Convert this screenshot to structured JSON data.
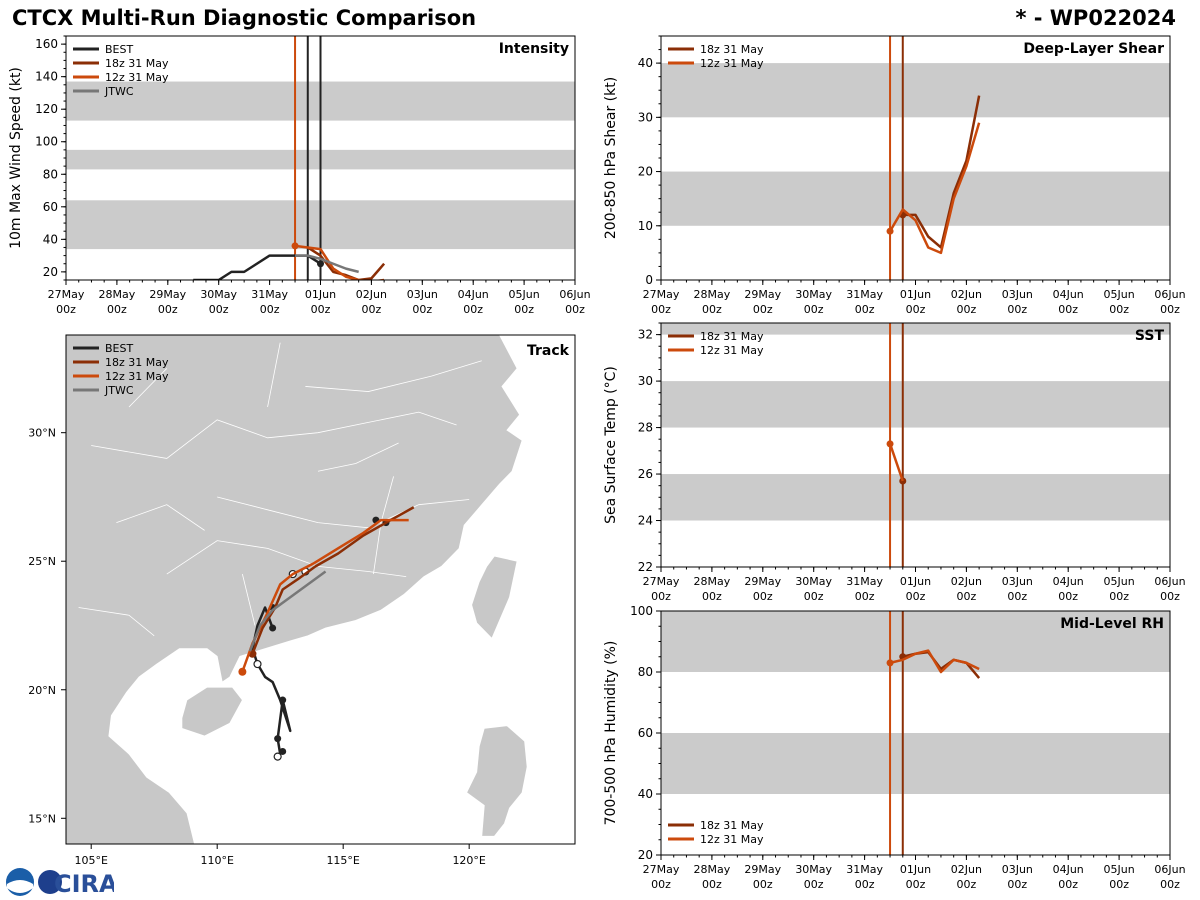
{
  "header": {
    "title": "CTCX Multi-Run Diagnostic Comparison",
    "storm_id": "* - WP022024"
  },
  "colors": {
    "best": "#222222",
    "run18": "#8b2e06",
    "run12": "#cc4a0c",
    "jtwc": "#777777",
    "band": "#cbcbcb",
    "land": "#c8c8c8",
    "border": "#ffffff"
  },
  "time_axis": {
    "ticks": [
      "27May\n00z",
      "28May\n00z",
      "29May\n00z",
      "30May\n00z",
      "31May\n00z",
      "01Jun\n00z",
      "02Jun\n00z",
      "03Jun\n00z",
      "04Jun\n00z",
      "05Jun\n00z",
      "06Jun\n00z"
    ]
  },
  "chart_data": [
    {
      "id": "intensity",
      "type": "line",
      "title": "Intensity",
      "ylabel": "10m Max Wind Speed (kt)",
      "ylim": [
        15,
        165
      ],
      "xlim": [
        0,
        10
      ],
      "yticks": [
        20,
        40,
        60,
        80,
        100,
        120,
        140,
        160
      ],
      "bands": [
        [
          34,
          64
        ],
        [
          83,
          95
        ],
        [
          113,
          137
        ]
      ],
      "vlines": [
        {
          "x": 4.5,
          "color": "run12"
        },
        {
          "x": 4.75,
          "color": "best"
        },
        {
          "x": 5.0,
          "color": "best"
        }
      ],
      "legend": [
        "BEST",
        "18z 31 May",
        "12z 31 May",
        "JTWC"
      ],
      "series": [
        {
          "name": "BEST",
          "color": "best",
          "x": [
            2.5,
            3.0,
            3.25,
            3.5,
            4.0,
            4.5,
            4.75,
            5.0
          ],
          "y": [
            15,
            15,
            20,
            20,
            30,
            30,
            30,
            25
          ],
          "markers": [
            5.0
          ]
        },
        {
          "name": "18z 31 May",
          "color": "run18",
          "x": [
            4.75,
            5.0,
            5.25,
            5.5,
            5.75,
            6.0,
            6.25
          ],
          "y": [
            35,
            30,
            20,
            18,
            15,
            16,
            25
          ]
        },
        {
          "name": "12z 31 May",
          "color": "run12",
          "x": [
            4.5,
            4.75,
            5.0,
            5.25,
            5.5,
            5.75,
            6.0,
            6.25
          ],
          "y": [
            36,
            35,
            34,
            22,
            17,
            15,
            14,
            15
          ],
          "markers": [
            4.5
          ]
        },
        {
          "name": "JTWC",
          "color": "jtwc",
          "x": [
            4.5,
            4.75,
            5.0,
            5.25,
            5.5,
            5.75
          ],
          "y": [
            30,
            30,
            28,
            25,
            22,
            20
          ]
        }
      ]
    },
    {
      "id": "shear",
      "type": "line",
      "title": "Deep-Layer Shear",
      "ylabel": "200-850 hPa Shear (kt)",
      "ylim": [
        0,
        45
      ],
      "xlim": [
        0,
        10
      ],
      "yticks": [
        0,
        10,
        20,
        30,
        40
      ],
      "bands": [
        [
          10,
          20
        ],
        [
          30,
          40
        ]
      ],
      "vlines": [
        {
          "x": 4.5,
          "color": "run12"
        },
        {
          "x": 4.75,
          "color": "run18"
        }
      ],
      "legend": [
        "18z 31 May",
        "12z 31 May"
      ],
      "series": [
        {
          "name": "18z 31 May",
          "color": "run18",
          "x": [
            4.75,
            5.0,
            5.25,
            5.5,
            5.75,
            6.0,
            6.25
          ],
          "y": [
            12,
            12,
            8,
            6,
            16,
            22,
            34
          ],
          "markers": [
            4.75
          ]
        },
        {
          "name": "12z 31 May",
          "color": "run12",
          "x": [
            4.5,
            4.75,
            5.0,
            5.25,
            5.5,
            5.75,
            6.0,
            6.25
          ],
          "y": [
            9,
            13,
            11,
            6,
            5,
            15,
            21,
            29
          ],
          "markers": [
            4.5
          ]
        }
      ]
    },
    {
      "id": "sst",
      "type": "line",
      "title": "SST",
      "ylabel": "Sea Surface Temp (°C)",
      "ylim": [
        22,
        32.5
      ],
      "xlim": [
        0,
        10
      ],
      "yticks": [
        22,
        24,
        26,
        28,
        30,
        32
      ],
      "bands": [
        [
          24,
          26
        ],
        [
          28,
          30
        ],
        [
          32,
          32.5
        ]
      ],
      "vlines": [
        {
          "x": 4.5,
          "color": "run12"
        },
        {
          "x": 4.75,
          "color": "run18"
        }
      ],
      "legend": [
        "18z 31 May",
        "12z 31 May"
      ],
      "series": [
        {
          "name": "18z 31 May",
          "color": "run18",
          "x": [
            4.75
          ],
          "y": [
            25.7
          ],
          "markers": [
            4.75
          ]
        },
        {
          "name": "12z 31 May",
          "color": "run12",
          "x": [
            4.5,
            4.75
          ],
          "y": [
            27.3,
            25.7
          ],
          "markers": [
            4.5
          ]
        }
      ]
    },
    {
      "id": "rh",
      "type": "line",
      "title": "Mid-Level RH",
      "ylabel": "700-500 hPa Humidity (%)",
      "ylim": [
        20,
        100
      ],
      "xlim": [
        0,
        10
      ],
      "yticks": [
        20,
        40,
        60,
        80,
        100
      ],
      "bands": [
        [
          40,
          60
        ],
        [
          80,
          100
        ]
      ],
      "vlines": [
        {
          "x": 4.5,
          "color": "run12"
        },
        {
          "x": 4.75,
          "color": "run18"
        }
      ],
      "legend": [
        "18z 31 May",
        "12z 31 May"
      ],
      "series": [
        {
          "name": "18z 31 May",
          "color": "run18",
          "x": [
            4.75,
            5.0,
            5.25,
            5.5,
            5.75,
            6.0,
            6.25
          ],
          "y": [
            85,
            86,
            86.5,
            81,
            84,
            83,
            78
          ],
          "markers": [
            4.75
          ]
        },
        {
          "name": "12z 31 May",
          "color": "run12",
          "x": [
            4.5,
            4.75,
            5.0,
            5.25,
            5.5,
            5.75,
            6.0,
            6.25
          ],
          "y": [
            83,
            84,
            86,
            87,
            80,
            84,
            83,
            81
          ],
          "markers": [
            4.5
          ]
        }
      ]
    },
    {
      "id": "track",
      "type": "scatter",
      "title": "Track",
      "xlim": [
        104.0,
        124.2
      ],
      "ylim": [
        14.0,
        33.8
      ],
      "xticks": [
        {
          "v": 105,
          "label": "105°E"
        },
        {
          "v": 110,
          "label": "110°E"
        },
        {
          "v": 115,
          "label": "115°E"
        },
        {
          "v": 120,
          "label": "120°E"
        }
      ],
      "yticks": [
        {
          "v": 15,
          "label": "15°N"
        },
        {
          "v": 20,
          "label": "20°N"
        },
        {
          "v": 25,
          "label": "25°N"
        },
        {
          "v": 30,
          "label": "30°N"
        }
      ],
      "legend": [
        "BEST",
        "18z 31 May",
        "12z 31 May",
        "JTWC"
      ],
      "series": [
        {
          "name": "BEST",
          "color": "best",
          "lon": [
            112.4,
            112.6,
            112.5,
            112.4,
            112.6,
            112.9,
            112.5,
            112.2,
            111.9,
            111.6,
            111.4,
            111.6,
            111.9,
            112.2
          ],
          "lat": [
            17.4,
            17.6,
            17.5,
            18.1,
            19.6,
            18.4,
            19.6,
            20.3,
            20.5,
            21.0,
            21.6,
            22.5,
            23.2,
            22.4
          ],
          "filled": [
            [
              112.6,
              17.6
            ],
            [
              112.4,
              18.1
            ],
            [
              112.6,
              19.6
            ],
            [
              112.2,
              22.4
            ],
            [
              112.2,
              23.2
            ],
            [
              116.7,
              26.5
            ],
            [
              116.3,
              26.6
            ]
          ],
          "hollow": [
            [
              112.4,
              17.4
            ],
            [
              111.6,
              21.0
            ],
            [
              113.0,
              24.5
            ],
            [
              113.5,
              24.6
            ]
          ]
        },
        {
          "name": "18z 31 May",
          "color": "run18",
          "lon": [
            111.4,
            111.8,
            112.3,
            112.6,
            113.2,
            113.9,
            114.8,
            115.8,
            116.7,
            117.8
          ],
          "lat": [
            21.4,
            22.4,
            23.2,
            23.9,
            24.3,
            24.8,
            25.3,
            26.0,
            26.5,
            27.1
          ],
          "markers": [
            [
              111.4,
              21.4
            ]
          ]
        },
        {
          "name": "12z 31 May",
          "color": "run12",
          "lon": [
            111.0,
            111.4,
            112.0,
            112.5,
            113.0,
            113.8,
            114.8,
            115.8,
            116.5,
            117.6
          ],
          "lat": [
            20.7,
            21.8,
            23.0,
            24.1,
            24.5,
            24.9,
            25.5,
            26.1,
            26.6,
            26.6
          ],
          "markers": [
            [
              111.0,
              20.7
            ]
          ]
        },
        {
          "name": "JTWC",
          "color": "jtwc",
          "lon": [
            111.3,
            111.7,
            112.2,
            112.9,
            113.6,
            114.3
          ],
          "lat": [
            21.5,
            22.5,
            23.1,
            23.6,
            24.1,
            24.6
          ]
        }
      ]
    }
  ],
  "logo": {
    "text": "CIRA"
  }
}
